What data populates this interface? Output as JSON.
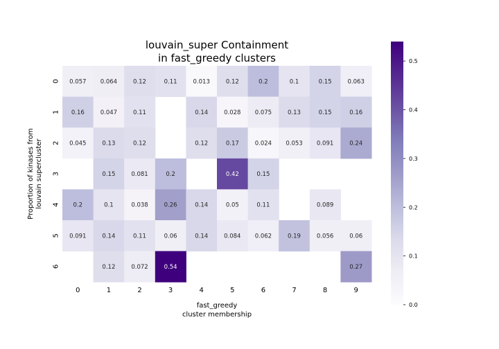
{
  "chart_data": {
    "type": "heatmap",
    "title_lines": [
      "louvain_super Containment",
      "in fast_greedy clusters"
    ],
    "xlabel_lines": [
      "fast_greedy",
      "cluster membership"
    ],
    "ylabel_lines": [
      "Proportion of kinases from",
      "louvain supercluster"
    ],
    "x_categories": [
      "0",
      "1",
      "2",
      "3",
      "4",
      "5",
      "6",
      "7",
      "8",
      "9"
    ],
    "y_categories": [
      "0",
      "1",
      "2",
      "3",
      "4",
      "5",
      "6"
    ],
    "values": [
      [
        0.057,
        0.064,
        0.12,
        0.11,
        0.013,
        0.12,
        0.2,
        0.1,
        0.15,
        0.063
      ],
      [
        0.16,
        0.047,
        0.11,
        null,
        0.14,
        0.028,
        0.075,
        0.13,
        0.15,
        0.16
      ],
      [
        0.045,
        0.13,
        0.12,
        null,
        0.12,
        0.17,
        0.024,
        0.053,
        0.091,
        0.24
      ],
      [
        null,
        0.15,
        0.081,
        0.2,
        null,
        0.42,
        0.15,
        null,
        null,
        null
      ],
      [
        0.2,
        0.1,
        0.038,
        0.26,
        0.14,
        0.05,
        0.11,
        null,
        0.089,
        null
      ],
      [
        0.091,
        0.14,
        0.11,
        0.06,
        0.14,
        0.084,
        0.062,
        0.19,
        0.056,
        0.06
      ],
      [
        null,
        0.12,
        0.072,
        0.54,
        null,
        null,
        null,
        null,
        null,
        0.27
      ]
    ],
    "colormap": "Purples",
    "colorbar": {
      "range": [
        0,
        0.54
      ],
      "ticks": [
        0.0,
        0.1,
        0.2,
        0.3,
        0.4,
        0.5
      ],
      "tick_labels": [
        "0.0",
        "0.1",
        "0.2",
        "0.3",
        "0.4",
        "0.5"
      ]
    }
  }
}
